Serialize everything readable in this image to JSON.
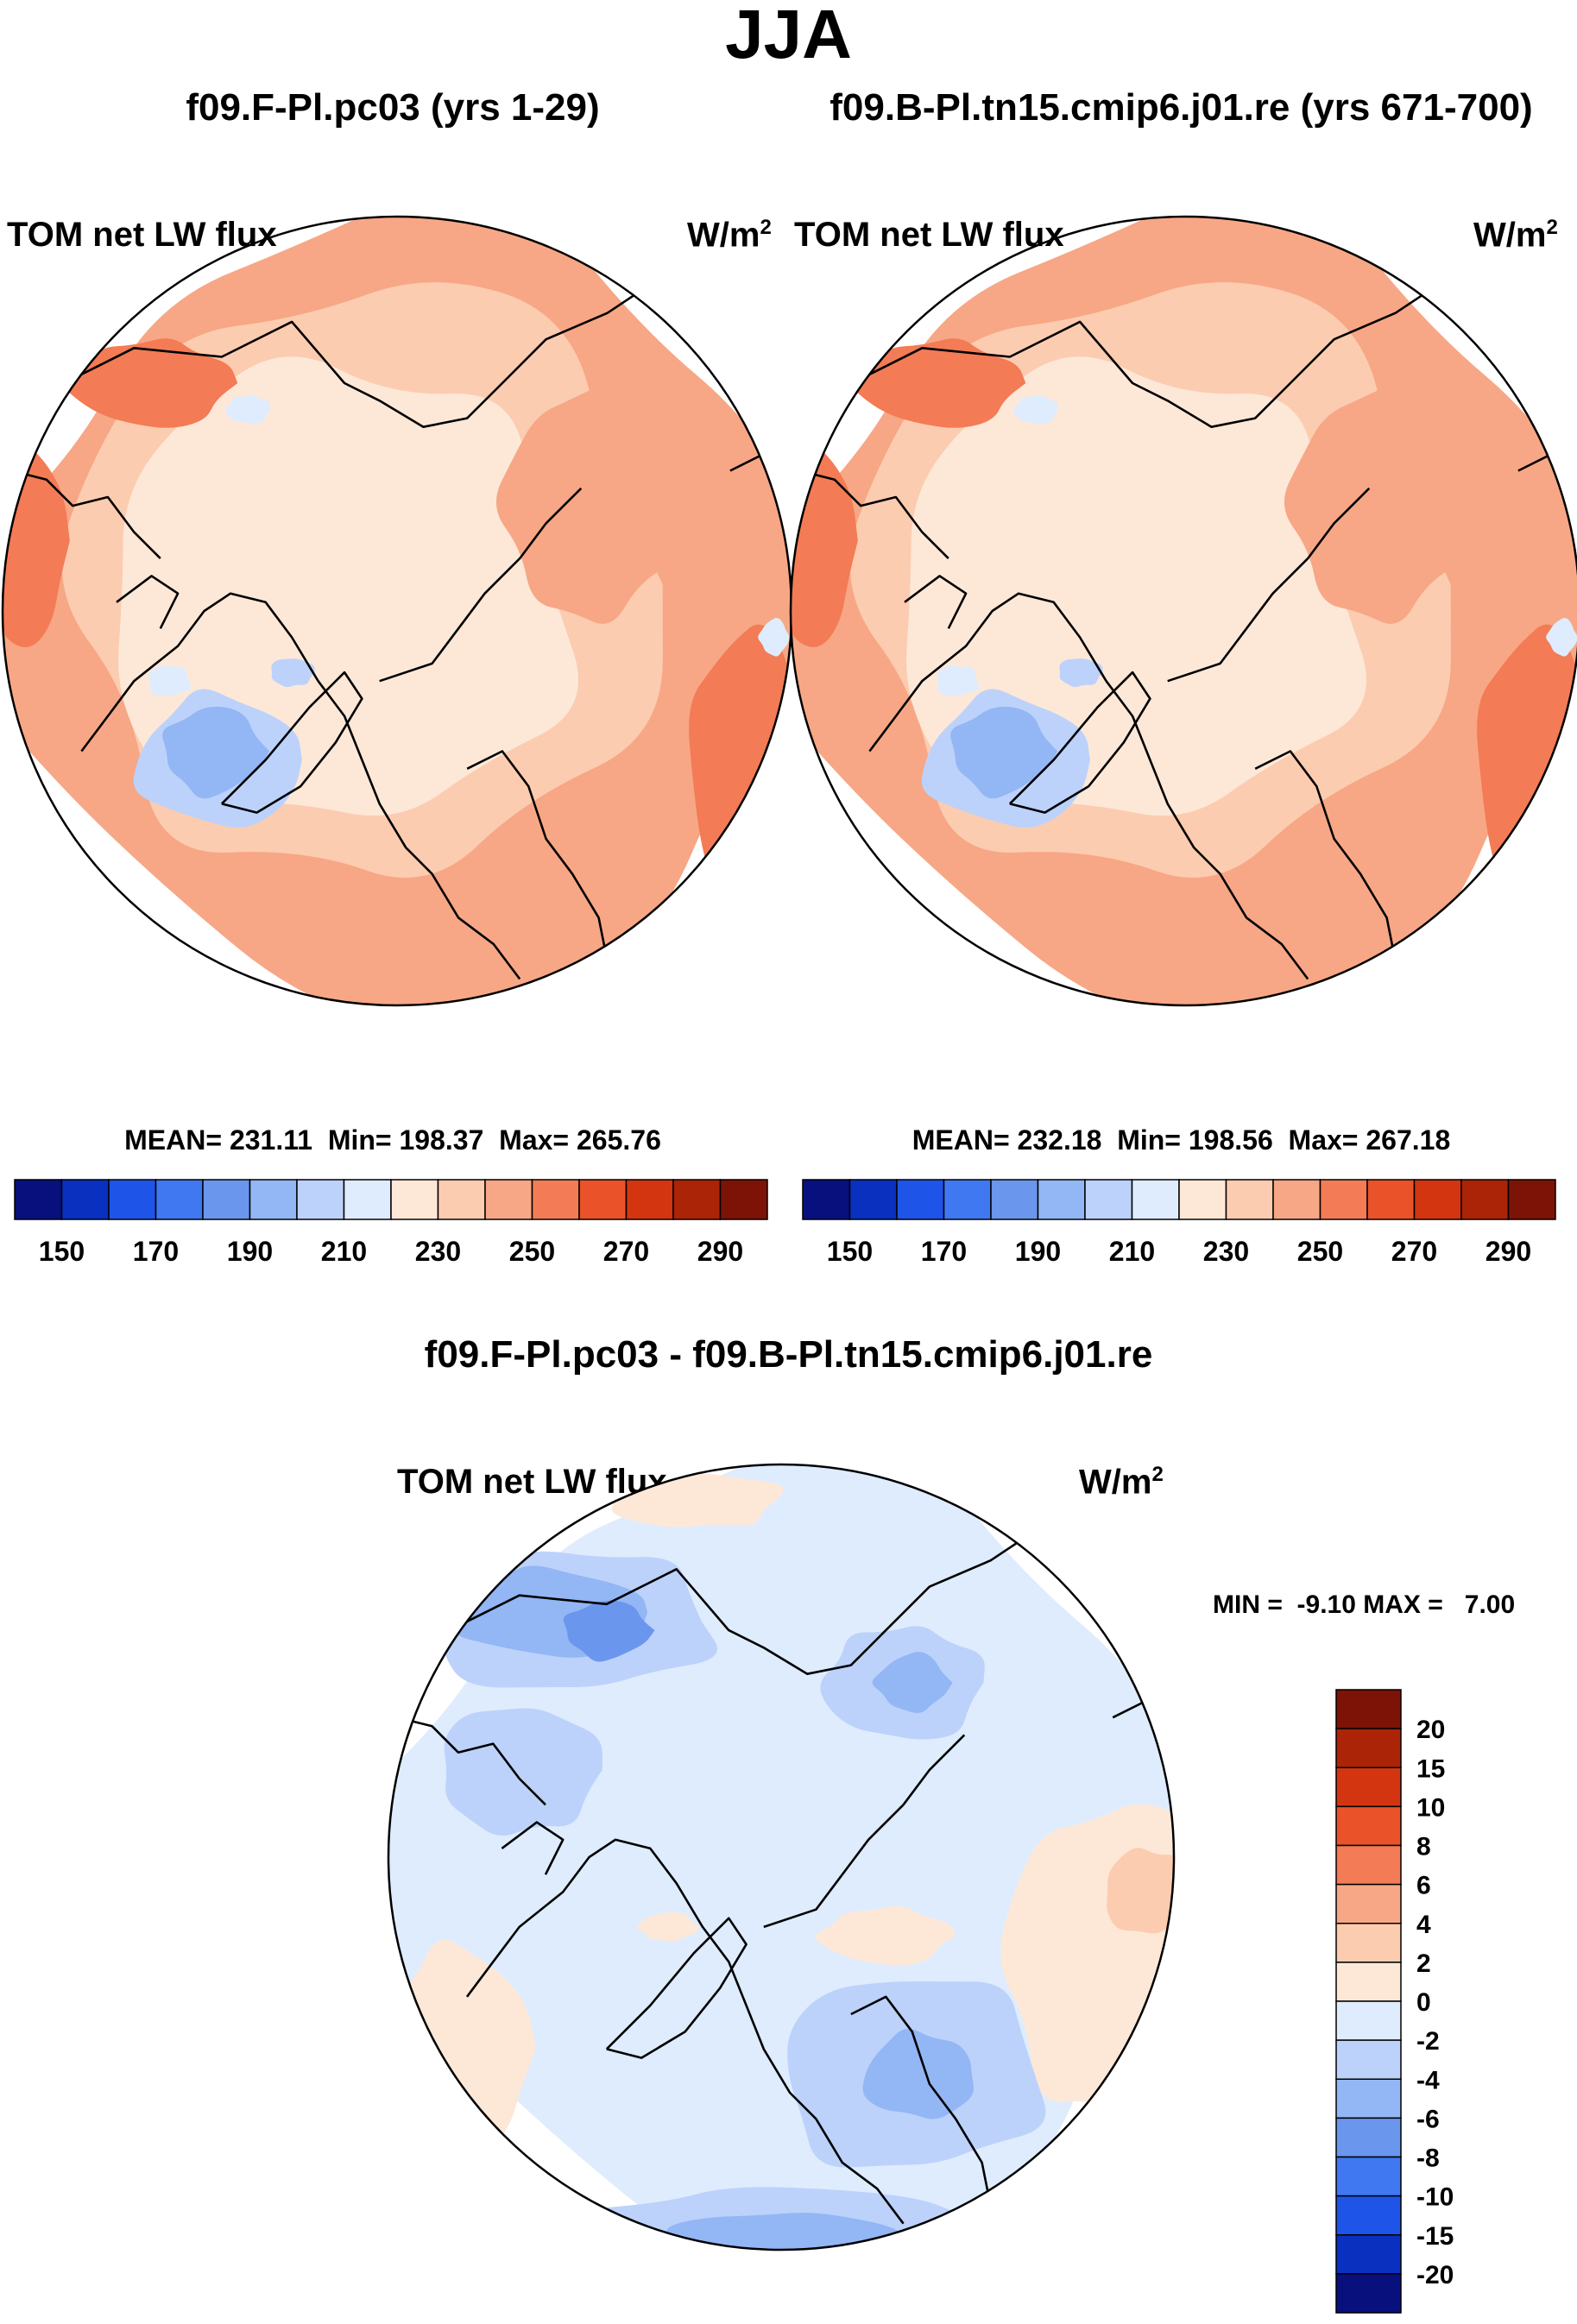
{
  "figure": {
    "title": "JJA",
    "panel_left": {
      "case": "f09.F-Pl.pc03 (yrs 1-29)",
      "variable": "TOM net LW flux",
      "units": "W/m",
      "units_exp": "2",
      "stats": "MEAN= 231.11  Min= 198.37  Max= 265.76"
    },
    "panel_right": {
      "case": "f09.B-Pl.tn15.cmip6.j01.re (yrs 671-700)",
      "variable": "TOM net LW flux",
      "units": "W/m",
      "units_exp": "2",
      "stats": "MEAN= 232.18  Min= 198.56  Max= 267.18"
    },
    "panel_diff": {
      "case": "f09.F-Pl.pc03 - f09.B-Pl.tn15.cmip6.j01.re",
      "variable": "TOM net LW flux",
      "units": "W/m",
      "units_exp": "2",
      "stats": "MIN =  -9.10 MAX =   7.00"
    }
  },
  "colors": {
    "abs_scale": [
      "#08107e",
      "#0a30c0",
      "#1f54e8",
      "#3f78f0",
      "#6b96ee",
      "#93b6f4",
      "#bcd2fb",
      "#deecfd",
      "#fde8d8",
      "#fcccb0",
      "#f7a785",
      "#f37b55",
      "#ea5229",
      "#d2350f",
      "#ac2407",
      "#7d1306"
    ],
    "diff_scale": [
      "#08107e",
      "#0a30c0",
      "#1f54e8",
      "#3f78f0",
      "#6b96ee",
      "#93b6f4",
      "#bcd2fb",
      "#deecfd",
      "#fde8d8",
      "#fcccb0",
      "#f7a785",
      "#f37b55",
      "#ea5229",
      "#d2350f",
      "#ac2407",
      "#7d1306"
    ],
    "land_line": "#000000"
  },
  "chart_data": [
    {
      "type": "heatmap",
      "title": "f09.F-Pl.pc03 (yrs 1-29)",
      "variable": "TOM net LW flux",
      "units": "W/m2",
      "projection": "north polar stereographic",
      "mean": 231.11,
      "min": 198.37,
      "max": 265.76,
      "levels": [
        150,
        160,
        170,
        180,
        190,
        200,
        210,
        220,
        230,
        240,
        250,
        260,
        270,
        280,
        290
      ],
      "tick_labels": [
        "150",
        "170",
        "190",
        "210",
        "230",
        "250",
        "270",
        "290"
      ]
    },
    {
      "type": "heatmap",
      "title": "f09.B-Pl.tn15.cmip6.j01.re (yrs 671-700)",
      "variable": "TOM net LW flux",
      "units": "W/m2",
      "projection": "north polar stereographic",
      "mean": 232.18,
      "min": 198.56,
      "max": 267.18,
      "levels": [
        150,
        160,
        170,
        180,
        190,
        200,
        210,
        220,
        230,
        240,
        250,
        260,
        270,
        280,
        290
      ],
      "tick_labels": [
        "150",
        "170",
        "190",
        "210",
        "230",
        "250",
        "270",
        "290"
      ]
    },
    {
      "type": "heatmap",
      "title": "f09.F-Pl.pc03 - f09.B-Pl.tn15.cmip6.j01.re",
      "variable": "TOM net LW flux",
      "units": "W/m2",
      "projection": "north polar stereographic",
      "min": -9.1,
      "max": 7.0,
      "levels": [
        -20,
        -15,
        -10,
        -8,
        -6,
        -4,
        -2,
        0,
        2,
        4,
        6,
        8,
        10,
        15,
        20
      ],
      "tick_labels": [
        "20",
        "15",
        "10",
        "8",
        "6",
        "4",
        "2",
        "0",
        "-2",
        "-4",
        "-6",
        "-8",
        "-10",
        "-15",
        "-20"
      ]
    }
  ]
}
